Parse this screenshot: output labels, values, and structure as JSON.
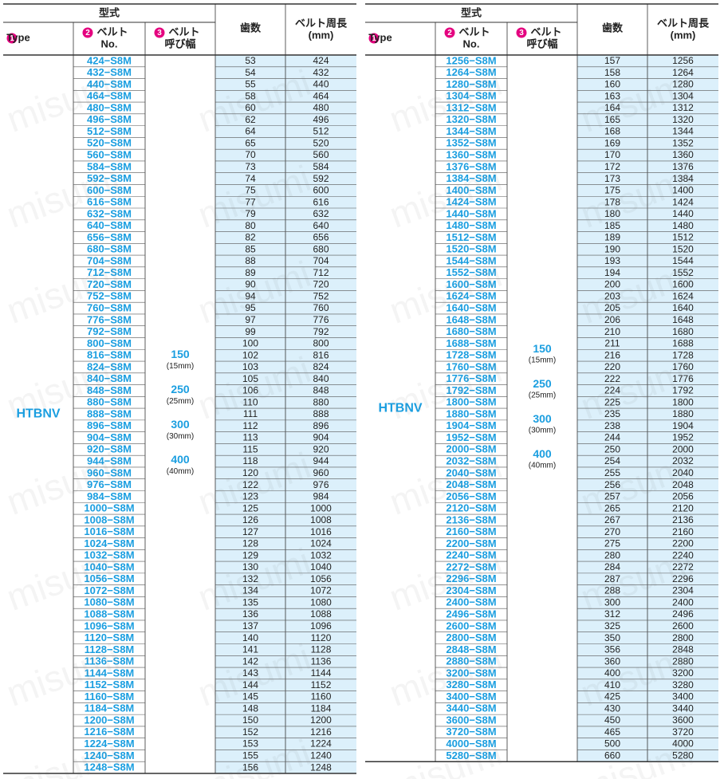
{
  "watermark": "misumi",
  "tables": [
    {
      "header": {
        "group": "型式",
        "type_num": "1",
        "type": "Type",
        "belt_num": "2",
        "belt": "ベルト",
        "belt_sub": "No.",
        "width_num": "3",
        "width": "ベルト",
        "width_sub": "呼び幅",
        "teeth": "歯数",
        "length": "ベルト周長",
        "length_unit": "(mm)"
      },
      "type": "HTBNV",
      "widths": [
        {
          "value": "150",
          "mm": "(15mm)"
        },
        {
          "value": "250",
          "mm": "(25mm)"
        },
        {
          "value": "300",
          "mm": "(30mm)"
        },
        {
          "value": "400",
          "mm": "(40mm)"
        }
      ],
      "rows": [
        [
          "424−S8M",
          53,
          424
        ],
        [
          "432−S8M",
          54,
          432
        ],
        [
          "440−S8M",
          55,
          440
        ],
        [
          "464−S8M",
          58,
          464
        ],
        [
          "480−S8M",
          60,
          480
        ],
        [
          "496−S8M",
          62,
          496
        ],
        [
          "512−S8M",
          64,
          512
        ],
        [
          "520−S8M",
          65,
          520
        ],
        [
          "560−S8M",
          70,
          560
        ],
        [
          "584−S8M",
          73,
          584
        ],
        [
          "592−S8M",
          74,
          592
        ],
        [
          "600−S8M",
          75,
          600
        ],
        [
          "616−S8M",
          77,
          616
        ],
        [
          "632−S8M",
          79,
          632
        ],
        [
          "640−S8M",
          80,
          640
        ],
        [
          "656−S8M",
          82,
          656
        ],
        [
          "680−S8M",
          85,
          680
        ],
        [
          "704−S8M",
          88,
          704
        ],
        [
          "712−S8M",
          89,
          712
        ],
        [
          "720−S8M",
          90,
          720
        ],
        [
          "752−S8M",
          94,
          752
        ],
        [
          "760−S8M",
          95,
          760
        ],
        [
          "776−S8M",
          97,
          776
        ],
        [
          "792−S8M",
          99,
          792
        ],
        [
          "800−S8M",
          100,
          800
        ],
        [
          "816−S8M",
          102,
          816
        ],
        [
          "824−S8M",
          103,
          824
        ],
        [
          "840−S8M",
          105,
          840
        ],
        [
          "848−S8M",
          106,
          848
        ],
        [
          "880−S8M",
          110,
          880
        ],
        [
          "888−S8M",
          111,
          888
        ],
        [
          "896−S8M",
          112,
          896
        ],
        [
          "904−S8M",
          113,
          904
        ],
        [
          "920−S8M",
          115,
          920
        ],
        [
          "944−S8M",
          118,
          944
        ],
        [
          "960−S8M",
          120,
          960
        ],
        [
          "976−S8M",
          122,
          976
        ],
        [
          "984−S8M",
          123,
          984
        ],
        [
          "1000−S8M",
          125,
          1000
        ],
        [
          "1008−S8M",
          126,
          1008
        ],
        [
          "1016−S8M",
          127,
          1016
        ],
        [
          "1024−S8M",
          128,
          1024
        ],
        [
          "1032−S8M",
          129,
          1032
        ],
        [
          "1040−S8M",
          130,
          1040
        ],
        [
          "1056−S8M",
          132,
          1056
        ],
        [
          "1072−S8M",
          134,
          1072
        ],
        [
          "1080−S8M",
          135,
          1080
        ],
        [
          "1088−S8M",
          136,
          1088
        ],
        [
          "1096−S8M",
          137,
          1096
        ],
        [
          "1120−S8M",
          140,
          1120
        ],
        [
          "1128−S8M",
          141,
          1128
        ],
        [
          "1136−S8M",
          142,
          1136
        ],
        [
          "1144−S8M",
          143,
          1144
        ],
        [
          "1152−S8M",
          144,
          1152
        ],
        [
          "1160−S8M",
          145,
          1160
        ],
        [
          "1184−S8M",
          148,
          1184
        ],
        [
          "1200−S8M",
          150,
          1200
        ],
        [
          "1216−S8M",
          152,
          1216
        ],
        [
          "1224−S8M",
          153,
          1224
        ],
        [
          "1240−S8M",
          155,
          1240
        ],
        [
          "1248−S8M",
          156,
          1248
        ]
      ]
    },
    {
      "header": {
        "group": "型式",
        "type_num": "1",
        "type": "Type",
        "belt_num": "2",
        "belt": "ベルト",
        "belt_sub": "No.",
        "width_num": "3",
        "width": "ベルト",
        "width_sub": "呼び幅",
        "teeth": "歯数",
        "length": "ベルト周長",
        "length_unit": "(mm)"
      },
      "type": "HTBNV",
      "widths": [
        {
          "value": "150",
          "mm": "(15mm)"
        },
        {
          "value": "250",
          "mm": "(25mm)"
        },
        {
          "value": "300",
          "mm": "(30mm)"
        },
        {
          "value": "400",
          "mm": "(40mm)"
        }
      ],
      "rows": [
        [
          "1256−S8M",
          157,
          1256
        ],
        [
          "1264−S8M",
          158,
          1264
        ],
        [
          "1280−S8M",
          160,
          1280
        ],
        [
          "1304−S8M",
          163,
          1304
        ],
        [
          "1312−S8M",
          164,
          1312
        ],
        [
          "1320−S8M",
          165,
          1320
        ],
        [
          "1344−S8M",
          168,
          1344
        ],
        [
          "1352−S8M",
          169,
          1352
        ],
        [
          "1360−S8M",
          170,
          1360
        ],
        [
          "1376−S8M",
          172,
          1376
        ],
        [
          "1384−S8M",
          173,
          1384
        ],
        [
          "1400−S8M",
          175,
          1400
        ],
        [
          "1424−S8M",
          178,
          1424
        ],
        [
          "1440−S8M",
          180,
          1440
        ],
        [
          "1480−S8M",
          185,
          1480
        ],
        [
          "1512−S8M",
          189,
          1512
        ],
        [
          "1520−S8M",
          190,
          1520
        ],
        [
          "1544−S8M",
          193,
          1544
        ],
        [
          "1552−S8M",
          194,
          1552
        ],
        [
          "1600−S8M",
          200,
          1600
        ],
        [
          "1624−S8M",
          203,
          1624
        ],
        [
          "1640−S8M",
          205,
          1640
        ],
        [
          "1648−S8M",
          206,
          1648
        ],
        [
          "1680−S8M",
          210,
          1680
        ],
        [
          "1688−S8M",
          211,
          1688
        ],
        [
          "1728−S8M",
          216,
          1728
        ],
        [
          "1760−S8M",
          220,
          1760
        ],
        [
          "1776−S8M",
          222,
          1776
        ],
        [
          "1792−S8M",
          224,
          1792
        ],
        [
          "1800−S8M",
          225,
          1800
        ],
        [
          "1880−S8M",
          235,
          1880
        ],
        [
          "1904−S8M",
          238,
          1904
        ],
        [
          "1952−S8M",
          244,
          1952
        ],
        [
          "2000−S8M",
          250,
          2000
        ],
        [
          "2032−S8M",
          254,
          2032
        ],
        [
          "2040−S8M",
          255,
          2040
        ],
        [
          "2048−S8M",
          256,
          2048
        ],
        [
          "2056−S8M",
          257,
          2056
        ],
        [
          "2120−S8M",
          265,
          2120
        ],
        [
          "2136−S8M",
          267,
          2136
        ],
        [
          "2160−S8M",
          270,
          2160
        ],
        [
          "2200−S8M",
          275,
          2200
        ],
        [
          "2240−S8M",
          280,
          2240
        ],
        [
          "2272−S8M",
          284,
          2272
        ],
        [
          "2296−S8M",
          287,
          2296
        ],
        [
          "2304−S8M",
          288,
          2304
        ],
        [
          "2400−S8M",
          300,
          2400
        ],
        [
          "2496−S8M",
          312,
          2496
        ],
        [
          "2600−S8M",
          325,
          2600
        ],
        [
          "2800−S8M",
          350,
          2800
        ],
        [
          "2848−S8M",
          356,
          2848
        ],
        [
          "2880−S8M",
          360,
          2880
        ],
        [
          "3200−S8M",
          400,
          3200
        ],
        [
          "3280−S8M",
          410,
          3280
        ],
        [
          "3400−S8M",
          425,
          3400
        ],
        [
          "3440−S8M",
          430,
          3440
        ],
        [
          "3600−S8M",
          450,
          3600
        ],
        [
          "3720−S8M",
          465,
          3720
        ],
        [
          "4000−S8M",
          500,
          4000
        ],
        [
          "5280−S8M",
          660,
          5280
        ]
      ]
    }
  ]
}
